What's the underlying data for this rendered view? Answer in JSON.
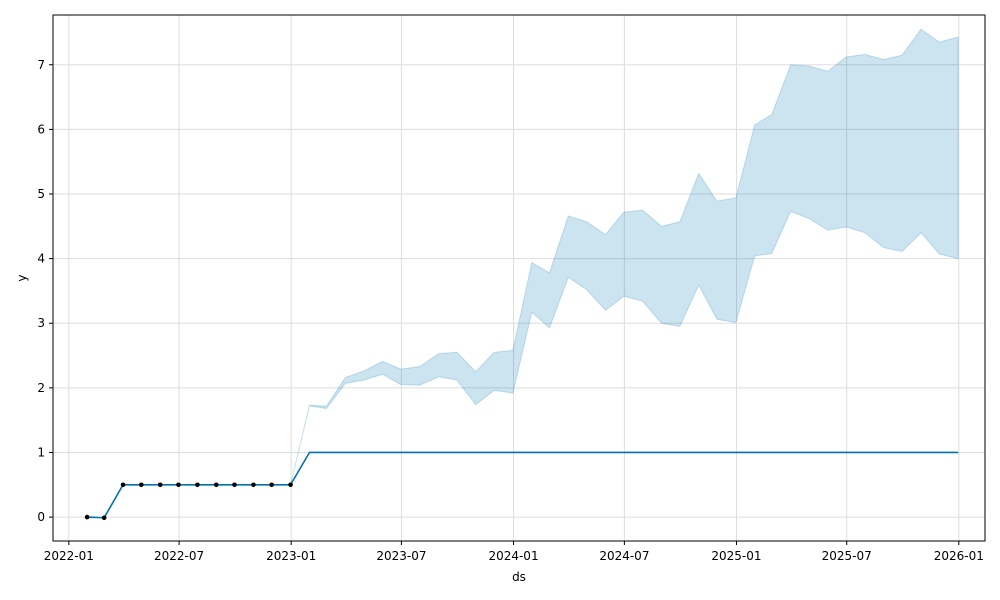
{
  "chart_data": {
    "type": "line",
    "title": "",
    "xlabel": "ds",
    "ylabel": "y",
    "x_ticks": [
      "2022-01",
      "2022-07",
      "2023-01",
      "2023-07",
      "2024-01",
      "2024-07",
      "2025-01",
      "2025-07",
      "2026-01"
    ],
    "y_ticks": [
      "0",
      "1",
      "2",
      "3",
      "4",
      "5",
      "6",
      "7"
    ],
    "xlim": [
      "2021-12-06",
      "2026-02-13"
    ],
    "ylim": [
      -0.37,
      7.77
    ],
    "grid": true,
    "colors": {
      "forecast": "#0072B2",
      "interval": "#0072B2",
      "observed": "#000000",
      "grid": "#dddddd"
    },
    "observed": {
      "x": [
        "2022-01-31",
        "2022-02-28",
        "2022-03-31",
        "2022-04-30",
        "2022-05-31",
        "2022-06-30",
        "2022-07-31",
        "2022-08-31",
        "2022-09-30",
        "2022-10-31",
        "2022-11-30",
        "2022-12-31"
      ],
      "y": [
        0.0,
        -0.01,
        0.5,
        0.5,
        0.5,
        0.5,
        0.5,
        0.5,
        0.5,
        0.5,
        0.5,
        0.5
      ]
    },
    "series": [
      {
        "kind": "forecast",
        "x": [
          "2022-01-31",
          "2022-02-28",
          "2022-03-31",
          "2022-04-30",
          "2022-05-31",
          "2022-06-30",
          "2022-07-31",
          "2022-08-31",
          "2022-09-30",
          "2022-10-31",
          "2022-11-30",
          "2022-12-31",
          "2023-01-31",
          "2023-02-28",
          "2025-12-31"
        ],
        "y": [
          0.0,
          -0.01,
          0.5,
          0.5,
          0.5,
          0.5,
          0.5,
          0.5,
          0.5,
          0.5,
          0.5,
          0.5,
          1.0,
          1.0,
          1.0
        ]
      }
    ],
    "interval": {
      "x": [
        "2022-01-31",
        "2022-02-28",
        "2022-03-31",
        "2022-04-30",
        "2022-05-31",
        "2022-06-30",
        "2022-07-31",
        "2022-08-31",
        "2022-09-30",
        "2022-10-31",
        "2022-11-30",
        "2022-12-31",
        "2023-01-31",
        "2023-02-28",
        "2023-03-31",
        "2023-04-30",
        "2023-05-31",
        "2023-06-30",
        "2023-07-31",
        "2023-08-31",
        "2023-09-30",
        "2023-10-31",
        "2023-11-30",
        "2023-12-31",
        "2024-01-31",
        "2024-02-29",
        "2024-03-31",
        "2024-04-30",
        "2024-05-31",
        "2024-06-30",
        "2024-07-31",
        "2024-08-31",
        "2024-09-30",
        "2024-10-31",
        "2024-11-30",
        "2024-12-31",
        "2025-01-31",
        "2025-02-28",
        "2025-03-31",
        "2025-04-30",
        "2025-05-31",
        "2025-06-30",
        "2025-07-31",
        "2025-08-31",
        "2025-09-30",
        "2025-10-31",
        "2025-11-30",
        "2025-12-31"
      ],
      "upper": [
        0.0,
        -0.01,
        0.5,
        0.5,
        0.5,
        0.5,
        0.5,
        0.5,
        0.5,
        0.5,
        0.5,
        0.5,
        1.73,
        1.72,
        2.16,
        2.26,
        2.41,
        2.29,
        2.33,
        2.53,
        2.55,
        2.25,
        2.55,
        2.58,
        3.94,
        3.78,
        4.66,
        4.57,
        4.37,
        4.72,
        4.75,
        4.5,
        4.57,
        5.32,
        4.89,
        4.94,
        6.07,
        6.23,
        7.0,
        6.98,
        6.9,
        7.12,
        7.16,
        7.08,
        7.15,
        7.55,
        7.35,
        7.43
      ],
      "lower": [
        0.0,
        -0.01,
        0.5,
        0.5,
        0.5,
        0.5,
        0.5,
        0.5,
        0.5,
        0.5,
        0.5,
        0.5,
        1.72,
        1.68,
        2.07,
        2.12,
        2.21,
        2.05,
        2.04,
        2.17,
        2.12,
        1.74,
        1.96,
        1.92,
        3.17,
        2.93,
        3.71,
        3.52,
        3.2,
        3.42,
        3.34,
        3.0,
        2.95,
        3.59,
        3.06,
        3.01,
        4.04,
        4.08,
        4.73,
        4.62,
        4.44,
        4.49,
        4.4,
        4.17,
        4.11,
        4.4,
        4.07,
        4.0
      ]
    }
  }
}
